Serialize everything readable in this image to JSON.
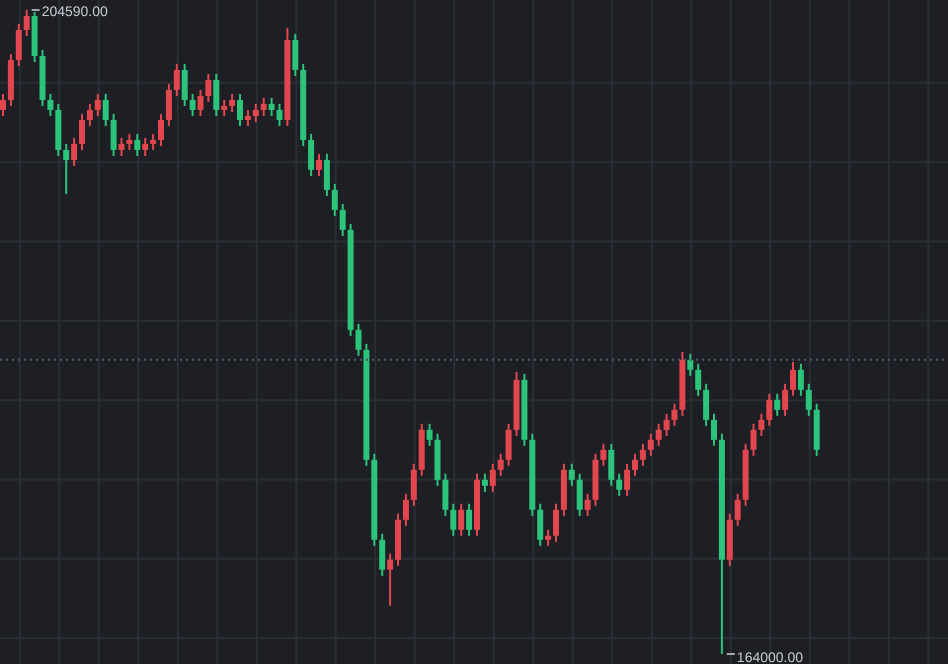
{
  "chart_data": {
    "type": "candlestick",
    "categories": [
      null,
      null,
      null,
      null,
      null,
      null,
      null,
      null,
      null,
      null,
      null,
      null,
      null,
      null,
      null,
      null,
      null,
      null,
      null,
      null,
      null,
      null,
      null,
      null,
      null,
      null,
      null,
      null,
      null,
      null,
      null,
      null,
      null,
      null,
      null,
      null,
      null,
      null,
      null,
      null,
      null,
      null,
      null,
      null,
      null,
      null,
      null,
      null,
      null,
      null,
      null,
      null,
      null,
      null,
      null,
      null,
      null,
      null,
      null,
      null,
      null,
      null,
      null,
      null,
      null,
      null,
      null,
      null,
      null,
      null,
      null,
      null,
      null,
      null,
      null,
      null,
      null,
      null,
      null,
      null,
      null,
      null,
      null,
      null,
      null,
      null,
      null,
      null,
      null,
      null,
      null,
      null,
      null,
      null,
      null,
      null,
      null,
      null,
      null,
      null,
      null,
      null,
      null,
      null
    ],
    "ohlc": [
      [
        198290,
        199300,
        197910,
        198920
      ],
      [
        198920,
        201820,
        198540,
        201440
      ],
      [
        201440,
        203710,
        201060,
        203330
      ],
      [
        203330,
        204590,
        202950,
        204210
      ],
      [
        204210,
        204460,
        201310,
        201690
      ],
      [
        201690,
        202070,
        198540,
        198920
      ],
      [
        198920,
        199300,
        197910,
        198290
      ],
      [
        198290,
        198670,
        195390,
        195770
      ],
      [
        195770,
        196150,
        193000,
        195140
      ],
      [
        195140,
        196530,
        194760,
        196150
      ],
      [
        196150,
        198040,
        195770,
        197660
      ],
      [
        197660,
        198670,
        197280,
        198290
      ],
      [
        198290,
        199300,
        197910,
        198920
      ],
      [
        198920,
        199300,
        197280,
        197660
      ],
      [
        197660,
        198040,
        195390,
        195770
      ],
      [
        195770,
        196530,
        195390,
        196150
      ],
      [
        196150,
        196780,
        195770,
        196400
      ],
      [
        196400,
        196780,
        195390,
        195770
      ],
      [
        195770,
        196530,
        195390,
        196150
      ],
      [
        196150,
        196780,
        195770,
        196400
      ],
      [
        196400,
        198040,
        196020,
        197660
      ],
      [
        197660,
        199930,
        197280,
        199550
      ],
      [
        199550,
        201190,
        199170,
        200810
      ],
      [
        200810,
        201190,
        198540,
        198920
      ],
      [
        198920,
        199300,
        197910,
        198290
      ],
      [
        198290,
        199550,
        197910,
        199170
      ],
      [
        199170,
        200560,
        198790,
        200180
      ],
      [
        200180,
        200560,
        197910,
        198290
      ],
      [
        198290,
        198920,
        197910,
        198540
      ],
      [
        198540,
        199300,
        198160,
        198920
      ],
      [
        198920,
        199300,
        197280,
        197660
      ],
      [
        197660,
        198290,
        197280,
        197910
      ],
      [
        197910,
        198670,
        197530,
        198290
      ],
      [
        198290,
        199050,
        197910,
        198670
      ],
      [
        198670,
        199050,
        197910,
        198290
      ],
      [
        198290,
        198670,
        197280,
        197660
      ],
      [
        197660,
        203460,
        197280,
        202700
      ],
      [
        202700,
        203080,
        200430,
        200810
      ],
      [
        200810,
        201190,
        196020,
        196400
      ],
      [
        196400,
        196780,
        194130,
        194510
      ],
      [
        194510,
        195520,
        194130,
        195140
      ],
      [
        195140,
        195520,
        192870,
        193250
      ],
      [
        193250,
        193630,
        191610,
        191990
      ],
      [
        191990,
        192370,
        190350,
        190730
      ],
      [
        190730,
        191110,
        184050,
        184430
      ],
      [
        184430,
        184810,
        182790,
        183170
      ],
      [
        183170,
        183550,
        175860,
        176240
      ],
      [
        176240,
        176620,
        170820,
        171200
      ],
      [
        171200,
        171580,
        168930,
        169310
      ],
      [
        169310,
        170320,
        167040,
        169940
      ],
      [
        169940,
        172840,
        169560,
        172460
      ],
      [
        172460,
        174100,
        172080,
        173720
      ],
      [
        173720,
        175990,
        173340,
        175610
      ],
      [
        175610,
        178510,
        175230,
        178130
      ],
      [
        178130,
        178510,
        177120,
        177500
      ],
      [
        177500,
        177880,
        174600,
        174980
      ],
      [
        174980,
        175360,
        172710,
        173090
      ],
      [
        173090,
        173470,
        171450,
        171830
      ],
      [
        171830,
        173470,
        171450,
        173090
      ],
      [
        173090,
        173470,
        171450,
        171830
      ],
      [
        171830,
        175360,
        171450,
        174980
      ],
      [
        174980,
        175360,
        174220,
        174600
      ],
      [
        174600,
        175990,
        174220,
        175610
      ],
      [
        175610,
        176620,
        175230,
        176240
      ],
      [
        176240,
        178510,
        175860,
        178130
      ],
      [
        178130,
        181780,
        177750,
        181280
      ],
      [
        181280,
        181660,
        177120,
        177500
      ],
      [
        177500,
        177880,
        172710,
        173090
      ],
      [
        173090,
        173470,
        170820,
        171200
      ],
      [
        171200,
        171830,
        170820,
        171450
      ],
      [
        171450,
        173470,
        171070,
        173090
      ],
      [
        173090,
        175990,
        172710,
        175610
      ],
      [
        175610,
        175990,
        174600,
        174980
      ],
      [
        174980,
        175360,
        172710,
        173090
      ],
      [
        173090,
        174100,
        172710,
        173720
      ],
      [
        173720,
        176620,
        173340,
        176240
      ],
      [
        176240,
        177250,
        175860,
        176870
      ],
      [
        176870,
        177250,
        174600,
        174980
      ],
      [
        174980,
        175360,
        173970,
        174350
      ],
      [
        174350,
        175990,
        173970,
        175610
      ],
      [
        175610,
        176620,
        175230,
        176240
      ],
      [
        176240,
        177250,
        175860,
        176870
      ],
      [
        176870,
        177880,
        176490,
        177500
      ],
      [
        177500,
        178510,
        177120,
        178130
      ],
      [
        178130,
        179140,
        177750,
        178760
      ],
      [
        178760,
        179770,
        178380,
        179390
      ],
      [
        179390,
        183040,
        179010,
        182540
      ],
      [
        182540,
        182920,
        181530,
        181910
      ],
      [
        181910,
        182290,
        180270,
        180650
      ],
      [
        180650,
        181030,
        178380,
        178760
      ],
      [
        178760,
        179140,
        177120,
        177500
      ],
      [
        177500,
        177880,
        164000,
        169940
      ],
      [
        169940,
        172840,
        169560,
        172460
      ],
      [
        172460,
        174100,
        172080,
        173720
      ],
      [
        173720,
        177250,
        173340,
        176870
      ],
      [
        176870,
        178510,
        176490,
        178130
      ],
      [
        178130,
        179140,
        177750,
        178760
      ],
      [
        178760,
        180400,
        178380,
        180020
      ],
      [
        180020,
        180400,
        179010,
        179390
      ],
      [
        179390,
        181030,
        179010,
        180650
      ],
      [
        180650,
        182410,
        180270,
        181910
      ],
      [
        181910,
        182290,
        180270,
        180650
      ],
      [
        180650,
        181030,
        179010,
        179390
      ],
      [
        179390,
        179770,
        176490,
        176870
      ]
    ],
    "colors": [
      "#e2474f",
      "#e2474f",
      "#e2474f",
      "#e2474f",
      "#2bc47a",
      "#2bc47a",
      "#2bc47a",
      "#2bc47a",
      "#2bc47a",
      "#e2474f",
      "#e2474f",
      "#e2474f",
      "#e2474f",
      "#2bc47a",
      "#2bc47a",
      "#e2474f",
      "#e2474f",
      "#2bc47a",
      "#e2474f",
      "#e2474f",
      "#e2474f",
      "#e2474f",
      "#e2474f",
      "#2bc47a",
      "#2bc47a",
      "#e2474f",
      "#e2474f",
      "#2bc47a",
      "#e2474f",
      "#e2474f",
      "#2bc47a",
      "#e2474f",
      "#e2474f",
      "#e2474f",
      "#2bc47a",
      "#2bc47a",
      "#e2474f",
      "#2bc47a",
      "#2bc47a",
      "#2bc47a",
      "#e2474f",
      "#2bc47a",
      "#2bc47a",
      "#2bc47a",
      "#2bc47a",
      "#2bc47a",
      "#2bc47a",
      "#2bc47a",
      "#2bc47a",
      "#e2474f",
      "#e2474f",
      "#e2474f",
      "#e2474f",
      "#e2474f",
      "#2bc47a",
      "#2bc47a",
      "#2bc47a",
      "#2bc47a",
      "#e2474f",
      "#2bc47a",
      "#e2474f",
      "#2bc47a",
      "#e2474f",
      "#e2474f",
      "#e2474f",
      "#e2474f",
      "#2bc47a",
      "#2bc47a",
      "#2bc47a",
      "#e2474f",
      "#e2474f",
      "#e2474f",
      "#2bc47a",
      "#2bc47a",
      "#e2474f",
      "#e2474f",
      "#e2474f",
      "#2bc47a",
      "#2bc47a",
      "#e2474f",
      "#e2474f",
      "#e2474f",
      "#e2474f",
      "#e2474f",
      "#e2474f",
      "#e2474f",
      "#e2474f",
      "#2bc47a",
      "#2bc47a",
      "#2bc47a",
      "#2bc47a",
      "#2bc47a",
      "#e2474f",
      "#e2474f",
      "#e2474f",
      "#e2474f",
      "#e2474f",
      "#e2474f",
      "#2bc47a",
      "#e2474f",
      "#e2474f",
      "#2bc47a",
      "#2bc47a",
      "#2bc47a"
    ],
    "ylim": [
      163370,
      205220
    ],
    "yticks": [
      {
        "value": 165000,
        "label": null
      },
      {
        "value": 170000,
        "label": null
      },
      {
        "value": 175000,
        "label": null
      },
      {
        "value": 180000,
        "label": null
      },
      {
        "value": 185000,
        "label": null
      },
      {
        "value": 190000,
        "label": null
      },
      {
        "value": 195000,
        "label": null
      },
      {
        "value": 200000,
        "label": null
      }
    ],
    "tick_labels": false,
    "grid": true,
    "ref_lines": [
      {
        "axis": "y",
        "value": 182540,
        "label": null,
        "color": "#4b5a6c",
        "line_style": "dotted"
      }
    ],
    "annotations": [
      "204590.00",
      "164000.00"
    ]
  }
}
